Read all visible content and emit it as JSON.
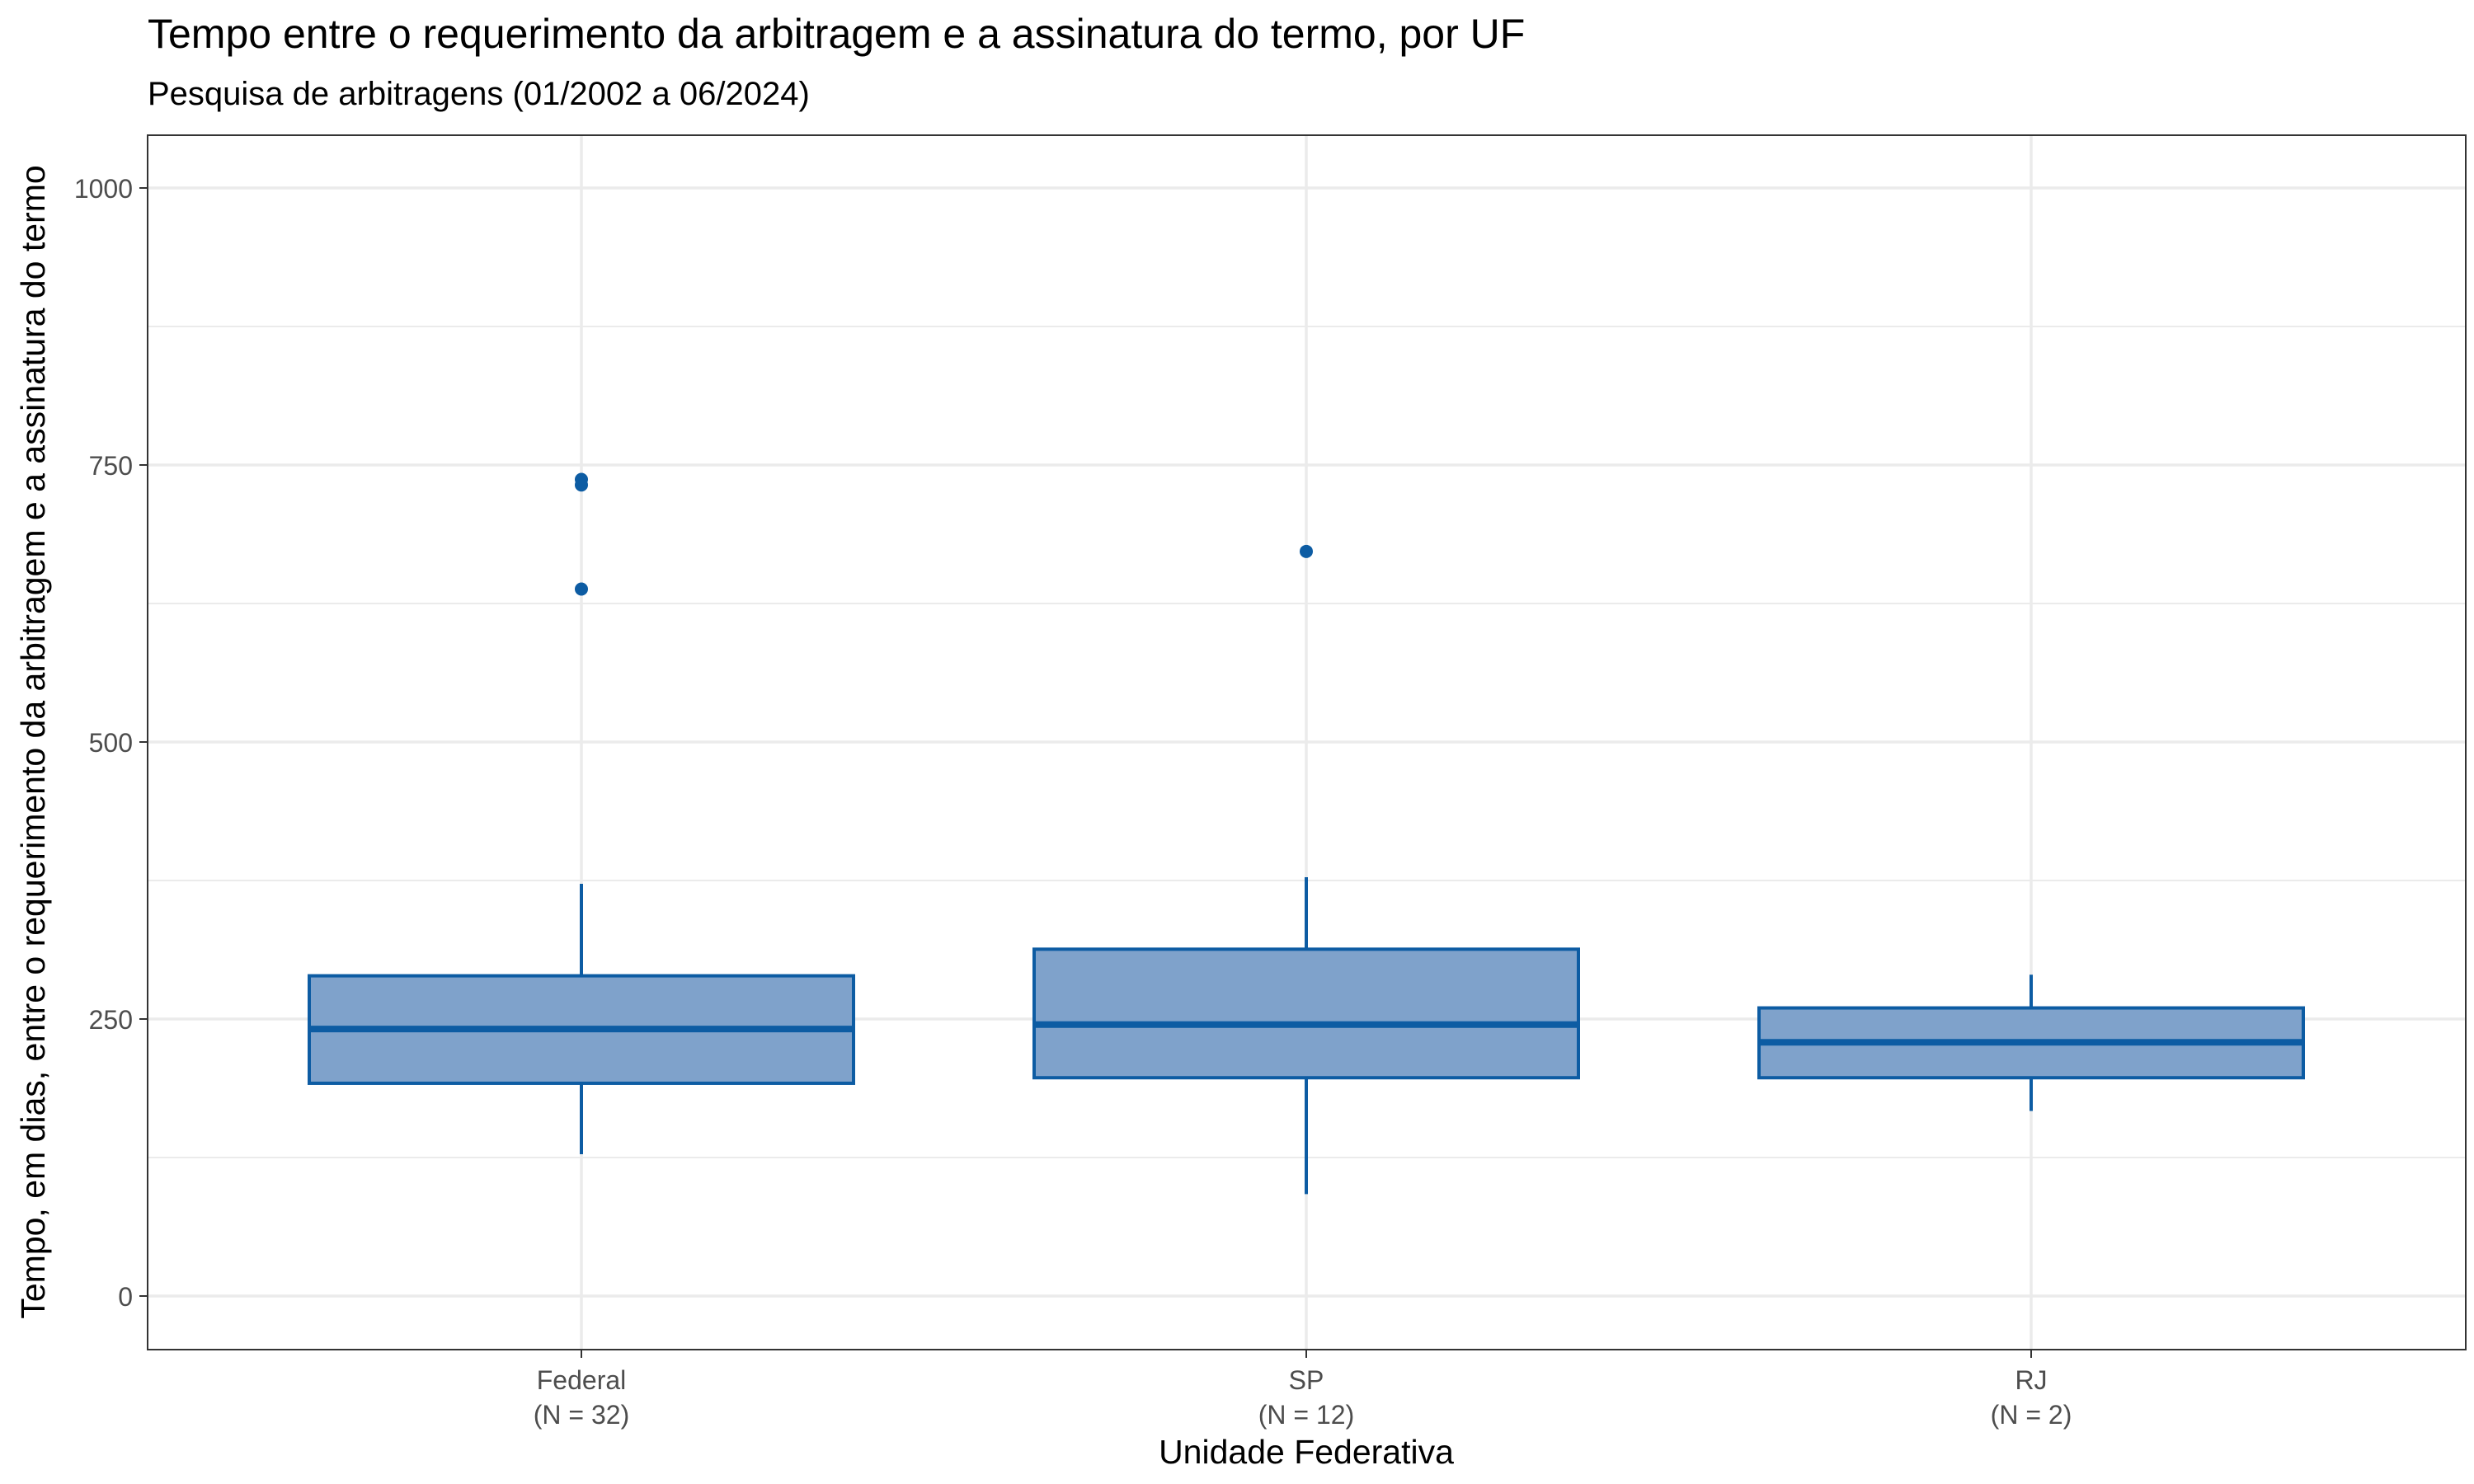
{
  "chart_data": {
    "type": "boxplot",
    "title": "Tempo entre o requerimento da arbitragem e a assinatura do termo, por UF",
    "subtitle": "Pesquisa de arbitragens (01/2002 a 06/2024)",
    "xlabel": "Unidade Federativa",
    "ylabel": "Tempo, em dias, entre o requerimento da arbitragem e a assinatura do termo",
    "ylim": [
      -50,
      1050
    ],
    "y_ticks": [
      0,
      250,
      500,
      750,
      1000
    ],
    "y_minor_ticks": [
      125,
      375,
      625,
      875
    ],
    "grid": true,
    "colors": {
      "fill": "#7FA2CB",
      "stroke": "#0D5CA3",
      "grid": "#EBEBEB",
      "panel_border": "#333333",
      "tick_text": "#4D4D4D"
    },
    "categories": [
      {
        "name": "Federal",
        "n_label": "(N = 32)",
        "whisker_low": 128,
        "q1": 192,
        "median": 241,
        "q3": 289,
        "whisker_high": 372,
        "outliers": [
          638,
          732,
          737
        ]
      },
      {
        "name": "SP",
        "n_label": "(N = 12)",
        "whisker_low": 92,
        "q1": 197,
        "median": 245,
        "q3": 313,
        "whisker_high": 378,
        "outliers": [
          672
        ]
      },
      {
        "name": "RJ",
        "n_label": "(N = 2)",
        "whisker_low": 167,
        "q1": 197,
        "median": 229,
        "q3": 260,
        "whisker_high": 290,
        "outliers": []
      }
    ]
  }
}
